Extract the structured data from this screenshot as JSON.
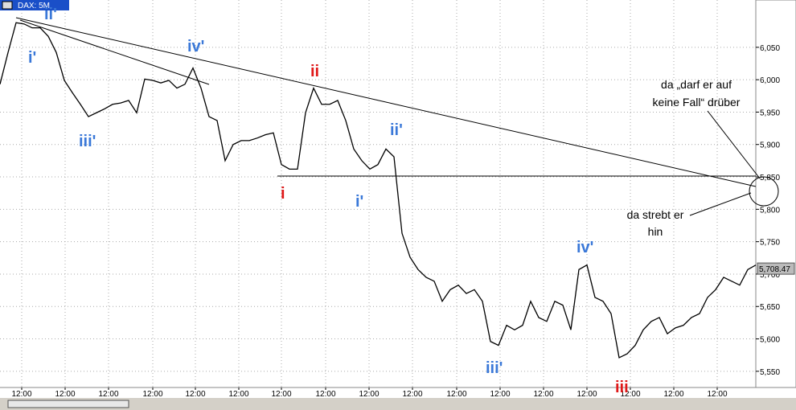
{
  "chart_data": {
    "type": "line",
    "title": "DAX: 5M",
    "values": [
      5993,
      6042,
      6088,
      6086,
      6080,
      6080,
      6067,
      6042,
      5999,
      5980,
      5962,
      5943,
      5949,
      5955,
      5962,
      5964,
      5968,
      5949,
      6001,
      5999,
      5995,
      5999,
      5987,
      5993,
      6018,
      5987,
      5943,
      5937,
      5875,
      5900,
      5906,
      5906,
      5910,
      5915,
      5918,
      5869,
      5862,
      5862,
      5949,
      5987,
      5962,
      5962,
      5968,
      5937,
      5893,
      5875,
      5862,
      5869,
      5893,
      5881,
      5763,
      5726,
      5707,
      5695,
      5689,
      5658,
      5676,
      5683,
      5670,
      5676,
      5658,
      5596,
      5590,
      5621,
      5614,
      5621,
      5658,
      5633,
      5627,
      5658,
      5652,
      5614,
      5707,
      5714,
      5664,
      5658,
      5639,
      5571,
      5577,
      5590,
      5614,
      5627,
      5633,
      5608,
      5617,
      5621,
      5633,
      5639,
      5664,
      5676,
      5695,
      5689,
      5683,
      5707,
      5714
    ],
    "color": "#000000",
    "xlim": [
      0,
      94
    ],
    "xticks": [
      {
        "value": 2.7,
        "label": "12:00"
      },
      {
        "value": 8.1,
        "label": "12:00"
      },
      {
        "value": 13.5,
        "label": "12:00"
      },
      {
        "value": 19,
        "label": "12:00"
      },
      {
        "value": 24.3,
        "label": "12:00"
      },
      {
        "value": 29.7,
        "label": "12:00"
      },
      {
        "value": 35,
        "label": "12:00"
      },
      {
        "value": 40.5,
        "label": "12:00"
      },
      {
        "value": 45.9,
        "label": "12:00"
      },
      {
        "value": 51.3,
        "label": "12:00"
      },
      {
        "value": 56.8,
        "label": "12:00"
      },
      {
        "value": 62.2,
        "label": "12:00"
      },
      {
        "value": 67.6,
        "label": "12:00"
      },
      {
        "value": 73,
        "label": "12:00"
      },
      {
        "value": 78.4,
        "label": "12:00"
      },
      {
        "value": 83.8,
        "label": "12:00"
      },
      {
        "value": 89.2,
        "label": "12:00"
      }
    ],
    "ylim": [
      5525,
      6123
    ],
    "yticks": [
      {
        "value": 5550,
        "label": "5,550"
      },
      {
        "value": 5600,
        "label": "5,600"
      },
      {
        "value": 5650,
        "label": "5,650"
      },
      {
        "value": 5700,
        "label": "5,700"
      },
      {
        "value": 5750,
        "label": "5,750"
      },
      {
        "value": 5800,
        "label": "5,800"
      },
      {
        "value": 5850,
        "label": "5,850"
      },
      {
        "value": 5900,
        "label": "5,900"
      },
      {
        "value": 5950,
        "label": "5,950"
      },
      {
        "value": 6000,
        "label": "6,000"
      },
      {
        "value": 6050,
        "label": "6,050"
      }
    ],
    "grid": true,
    "last_price": {
      "value": 5708.47,
      "label": "5,708.47"
    },
    "annotations": [
      {
        "text": "ii'",
        "color": "#3a78d8"
      },
      {
        "text": "i'",
        "color": "#3a78d8"
      },
      {
        "text": "iv'",
        "color": "#3a78d8"
      },
      {
        "text": "iii'",
        "color": "#3a78d8"
      },
      {
        "text": "ii",
        "color": "#e01818"
      },
      {
        "text": "i",
        "color": "#e01818"
      },
      {
        "text": "ii'",
        "color": "#3a78d8"
      },
      {
        "text": "i'",
        "color": "#3a78d8"
      },
      {
        "text": "iv'",
        "color": "#3a78d8"
      },
      {
        "text": "iii'",
        "color": "#3a78d8"
      },
      {
        "text": "iii",
        "color": "#e01818"
      }
    ],
    "notes": [
      "da „darf er auf",
      "keine Fall“ drüber",
      "da strebt er",
      "hin"
    ]
  }
}
